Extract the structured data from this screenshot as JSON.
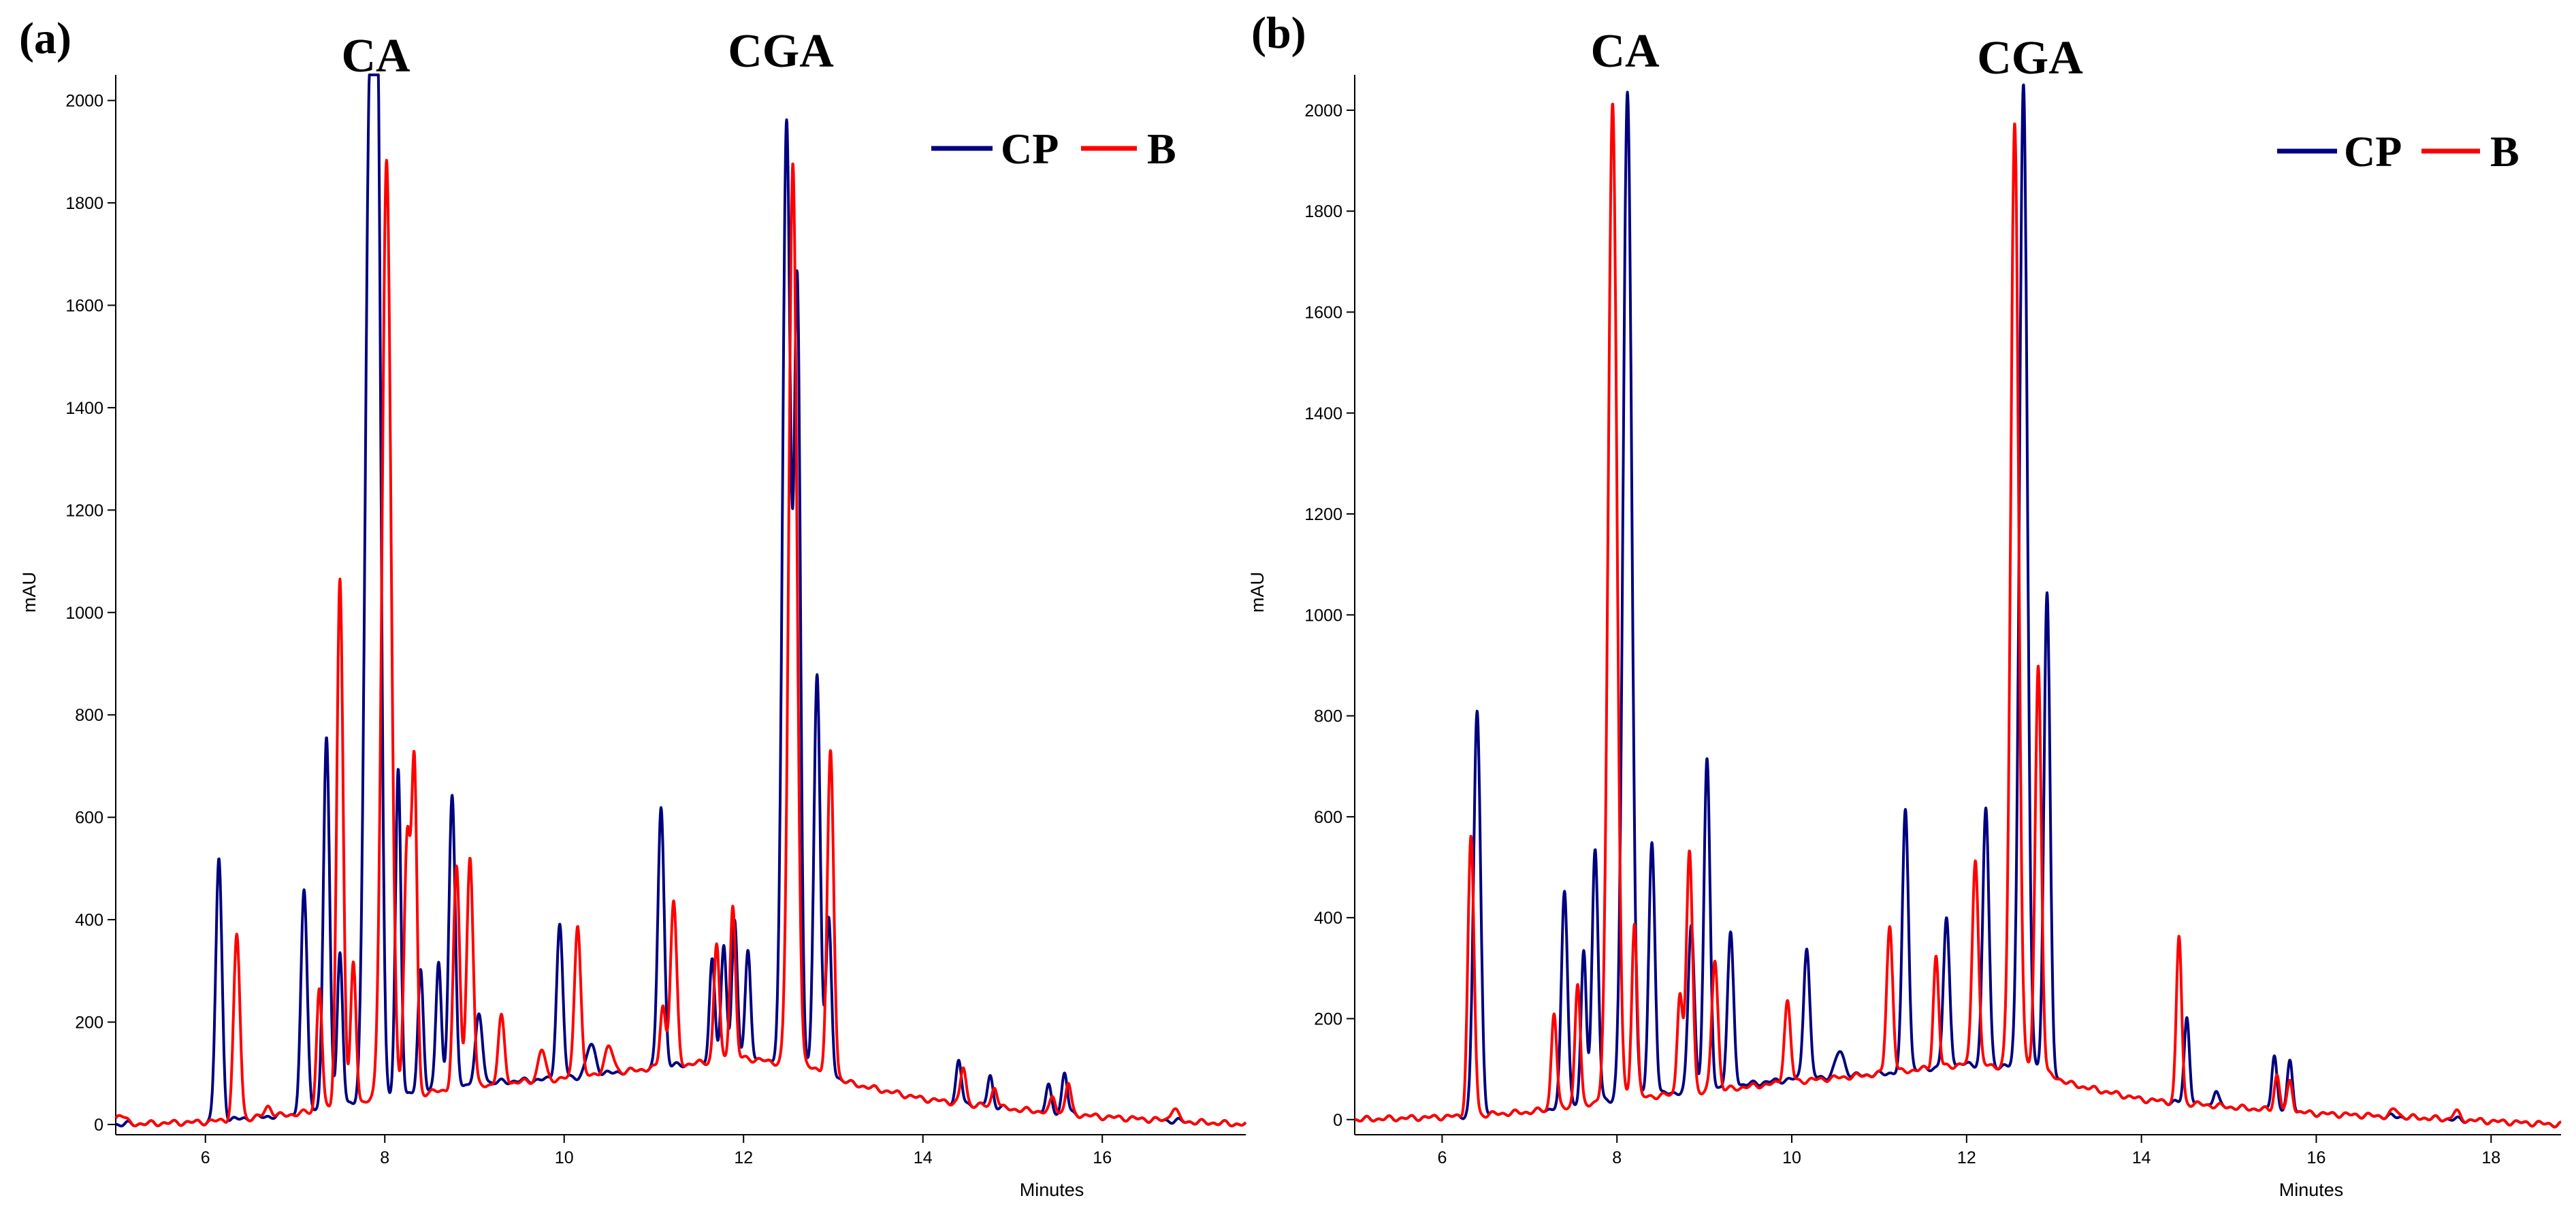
{
  "chart_data": [
    {
      "type": "line",
      "panel_label": "(a)",
      "xlabel": "Minutes",
      "ylabel": "mAU",
      "xlim": [
        5,
        17.6
      ],
      "ylim": [
        -20,
        2050
      ],
      "x_ticks": [
        6,
        8,
        10,
        12,
        14,
        16
      ],
      "x_tick_labels": [
        "6",
        "8",
        "10",
        "12",
        "14",
        "16"
      ],
      "y_ticks": [
        0,
        200,
        400,
        600,
        800,
        1000,
        1200,
        1400,
        1600,
        1800,
        2000
      ],
      "y_tick_labels": [
        "0",
        "200",
        "400",
        "600",
        "800",
        "1000",
        "1200",
        "1400",
        "1600",
        "1800",
        "2000"
      ],
      "peak_annotations": [
        {
          "text": "CA",
          "x": 7.9
        },
        {
          "text": "CGA",
          "x": 12.5
        }
      ],
      "legend": [
        "CP",
        "B"
      ],
      "series": [
        {
          "name": "CP",
          "color": "#000080",
          "baseline": [
            [
              5,
              0
            ],
            [
              6,
              5
            ],
            [
              7,
              20
            ],
            [
              8,
              50
            ],
            [
              9,
              80
            ],
            [
              10,
              90
            ],
            [
              11,
              110
            ],
            [
              12,
              130
            ],
            [
              12.8,
              110
            ],
            [
              13.2,
              80
            ],
            [
              14,
              50
            ],
            [
              15,
              30
            ],
            [
              16,
              15
            ],
            [
              17,
              5
            ],
            [
              17.6,
              0
            ]
          ],
          "peaks": [
            [
              6.15,
              510,
              0.035
            ],
            [
              7.1,
              430,
              0.035
            ],
            [
              7.35,
              720,
              0.035
            ],
            [
              7.5,
              300,
              0.03
            ],
            [
              7.83,
              1900,
              0.05
            ],
            [
              7.92,
              1800,
              0.04
            ],
            [
              8.15,
              640,
              0.03
            ],
            [
              8.4,
              240,
              0.03
            ],
            [
              8.6,
              250,
              0.03
            ],
            [
              8.75,
              570,
              0.035
            ],
            [
              9.05,
              130,
              0.04
            ],
            [
              9.95,
              300,
              0.035
            ],
            [
              10.3,
              60,
              0.05
            ],
            [
              11.08,
              510,
              0.035
            ],
            [
              11.65,
              200,
              0.03
            ],
            [
              11.78,
              220,
              0.03
            ],
            [
              11.9,
              270,
              0.03
            ],
            [
              12.05,
              210,
              0.03
            ],
            [
              12.48,
              1840,
              0.045
            ],
            [
              12.6,
              1500,
              0.035
            ],
            [
              12.82,
              770,
              0.035
            ],
            [
              12.95,
              300,
              0.03
            ],
            [
              14.4,
              80,
              0.03
            ],
            [
              14.75,
              60,
              0.03
            ],
            [
              15.4,
              50,
              0.03
            ],
            [
              15.58,
              80,
              0.03
            ]
          ]
        },
        {
          "name": "B",
          "color": "#ff0000",
          "baseline": [
            [
              5,
              0
            ],
            [
              6,
              5
            ],
            [
              7,
              20
            ],
            [
              8,
              50
            ],
            [
              9,
              75
            ],
            [
              10,
              90
            ],
            [
              11,
              110
            ],
            [
              12,
              130
            ],
            [
              12.8,
              110
            ],
            [
              13.2,
              80
            ],
            [
              14,
              50
            ],
            [
              15,
              30
            ],
            [
              16,
              15
            ],
            [
              17,
              5
            ],
            [
              17.6,
              0
            ]
          ],
          "peaks": [
            [
              5.05,
              20,
              0.05
            ],
            [
              6.35,
              360,
              0.035
            ],
            [
              6.7,
              20,
              0.04
            ],
            [
              7.27,
              240,
              0.03
            ],
            [
              7.5,
              1030,
              0.035
            ],
            [
              7.65,
              280,
              0.03
            ],
            [
              8.02,
              1830,
              0.05
            ],
            [
              8.25,
              500,
              0.035
            ],
            [
              8.33,
              630,
              0.03
            ],
            [
              8.8,
              430,
              0.035
            ],
            [
              8.95,
              450,
              0.035
            ],
            [
              9.3,
              130,
              0.035
            ],
            [
              9.75,
              60,
              0.04
            ],
            [
              10.15,
              300,
              0.035
            ],
            [
              10.5,
              50,
              0.05
            ],
            [
              11.1,
              120,
              0.03
            ],
            [
              11.22,
              320,
              0.035
            ],
            [
              11.7,
              230,
              0.03
            ],
            [
              11.88,
              300,
              0.03
            ],
            [
              12.55,
              1760,
              0.045
            ],
            [
              12.97,
              630,
              0.035
            ],
            [
              14.45,
              70,
              0.03
            ],
            [
              14.8,
              40,
              0.03
            ],
            [
              15.45,
              30,
              0.03
            ],
            [
              15.62,
              60,
              0.03
            ],
            [
              16.8,
              25,
              0.04
            ]
          ]
        }
      ]
    },
    {
      "type": "line",
      "panel_label": "(b)",
      "xlabel": "Minutes",
      "ylabel": "mAU",
      "xlim": [
        5,
        18.8
      ],
      "ylim": [
        -30,
        2070
      ],
      "x_ticks": [
        6,
        8,
        10,
        12,
        14,
        16,
        18
      ],
      "x_tick_labels": [
        "6",
        "8",
        "10",
        "12",
        "14",
        "16",
        "18"
      ],
      "y_ticks": [
        0,
        200,
        400,
        600,
        800,
        1000,
        1200,
        1400,
        1600,
        1800,
        2000
      ],
      "y_tick_labels": [
        "0",
        "200",
        "400",
        "600",
        "800",
        "1000",
        "1200",
        "1400",
        "1600",
        "1800",
        "2000"
      ],
      "peak_annotations": [
        {
          "text": "CA",
          "x": 8.05
        },
        {
          "text": "CGA",
          "x": 12.5
        }
      ],
      "legend": [
        "CP",
        "B"
      ],
      "series": [
        {
          "name": "CP",
          "color": "#000080",
          "baseline": [
            [
              5,
              0
            ],
            [
              6,
              5
            ],
            [
              7,
              15
            ],
            [
              8,
              40
            ],
            [
              9,
              60
            ],
            [
              10,
              80
            ],
            [
              11,
              90
            ],
            [
              12,
              110
            ],
            [
              12.8,
              100
            ],
            [
              13.2,
              70
            ],
            [
              14,
              40
            ],
            [
              15,
              25
            ],
            [
              16,
              12
            ],
            [
              17,
              5
            ],
            [
              18.8,
              -10
            ]
          ],
          "peaks": [
            [
              6.4,
              800,
              0.04
            ],
            [
              7.4,
              430,
              0.035
            ],
            [
              7.62,
              300,
              0.03
            ],
            [
              7.75,
              500,
              0.035
            ],
            [
              8.12,
              1990,
              0.05
            ],
            [
              8.4,
              500,
              0.035
            ],
            [
              8.85,
              330,
              0.035
            ],
            [
              9.03,
              650,
              0.035
            ],
            [
              9.3,
              300,
              0.035
            ],
            [
              10.17,
              260,
              0.035
            ],
            [
              10.55,
              50,
              0.05
            ],
            [
              11.3,
              520,
              0.035
            ],
            [
              11.77,
              290,
              0.035
            ],
            [
              12.22,
              510,
              0.035
            ],
            [
              12.65,
              1950,
              0.045
            ],
            [
              12.92,
              950,
              0.035
            ],
            [
              14.52,
              170,
              0.03
            ],
            [
              14.85,
              30,
              0.03
            ],
            [
              15.52,
              110,
              0.03
            ],
            [
              15.7,
              100,
              0.03
            ]
          ]
        },
        {
          "name": "B",
          "color": "#ff0000",
          "baseline": [
            [
              5,
              0
            ],
            [
              6,
              5
            ],
            [
              7,
              15
            ],
            [
              8,
              40
            ],
            [
              9,
              55
            ],
            [
              10,
              75
            ],
            [
              11,
              90
            ],
            [
              12,
              110
            ],
            [
              12.8,
              100
            ],
            [
              13.2,
              70
            ],
            [
              14,
              40
            ],
            [
              15,
              25
            ],
            [
              16,
              12
            ],
            [
              17,
              5
            ],
            [
              18.8,
              -10
            ]
          ],
          "peaks": [
            [
              6.33,
              550,
              0.035
            ],
            [
              7.28,
              190,
              0.03
            ],
            [
              7.55,
              240,
              0.03
            ],
            [
              7.95,
              1980,
              0.05
            ],
            [
              8.2,
              350,
              0.03
            ],
            [
              8.72,
              200,
              0.03
            ],
            [
              8.83,
              480,
              0.035
            ],
            [
              9.12,
              260,
              0.035
            ],
            [
              9.95,
              160,
              0.035
            ],
            [
              11.12,
              290,
              0.035
            ],
            [
              11.65,
              220,
              0.03
            ],
            [
              12.1,
              410,
              0.035
            ],
            [
              12.55,
              1870,
              0.045
            ],
            [
              12.82,
              800,
              0.035
            ],
            [
              14.43,
              330,
              0.03
            ],
            [
              15.55,
              70,
              0.03
            ],
            [
              15.7,
              60,
              0.03
            ],
            [
              16.9,
              15,
              0.04
            ],
            [
              17.6,
              15,
              0.04
            ]
          ]
        }
      ]
    }
  ]
}
